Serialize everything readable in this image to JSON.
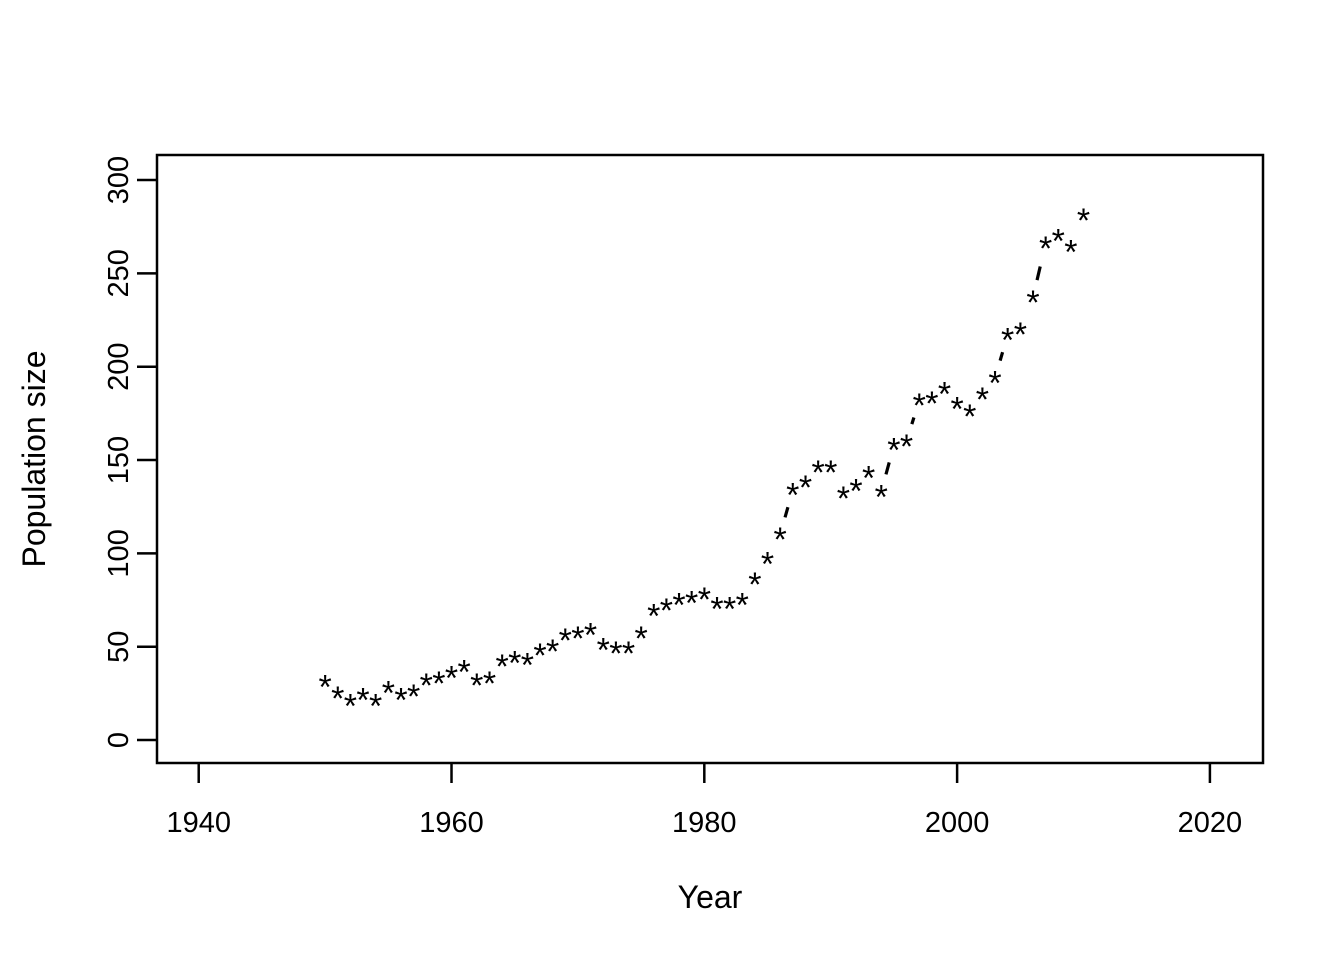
{
  "figure": {
    "background_color": "#ffffff",
    "foreground_color": "#000000"
  },
  "chart_data": {
    "type": "scatter",
    "title": "",
    "xlabel": "Year",
    "ylabel": "Population size",
    "point_char": "*",
    "point_color": "#000000",
    "line_style": "dashed",
    "grid": "off",
    "legend": "none",
    "x_ticks": [
      1940,
      1960,
      1980,
      2000,
      2020
    ],
    "y_ticks": [
      0,
      50,
      100,
      150,
      200,
      250,
      300
    ],
    "x_range": [
      1936.7,
      2024.2
    ],
    "y_range": [
      -12.3,
      313.4
    ],
    "x": [
      1950,
      1951,
      1952,
      1953,
      1954,
      1955,
      1956,
      1957,
      1958,
      1959,
      1960,
      1961,
      1962,
      1963,
      1964,
      1965,
      1966,
      1967,
      1968,
      1969,
      1970,
      1971,
      1972,
      1973,
      1974,
      1975,
      1976,
      1977,
      1978,
      1979,
      1980,
      1981,
      1982,
      1983,
      1984,
      1985,
      1986,
      1987,
      1988,
      1989,
      1990,
      1991,
      1992,
      1993,
      1994,
      1995,
      1996,
      1997,
      1998,
      1999,
      2000,
      2001,
      2002,
      2003,
      2004,
      2005,
      2006,
      2007,
      2008,
      2009,
      2010
    ],
    "y": [
      31,
      25,
      21,
      24,
      21,
      28,
      24,
      26,
      32,
      33,
      36,
      39,
      32,
      33,
      42,
      44,
      43,
      48,
      50,
      56,
      57,
      59,
      51,
      49,
      49,
      57,
      69,
      72,
      75,
      76,
      78,
      73,
      73,
      75,
      86,
      97,
      110,
      134,
      138,
      146,
      146,
      132,
      136,
      143,
      133,
      158,
      160,
      182,
      183,
      188,
      180,
      176,
      185,
      194,
      217,
      220,
      237,
      266,
      270,
      264,
      281
    ],
    "dashed_segments": [
      [
        1986,
        1987
      ],
      [
        1994,
        1995
      ],
      [
        1996,
        1997
      ],
      [
        2003,
        2004
      ],
      [
        2006,
        2007
      ]
    ]
  }
}
